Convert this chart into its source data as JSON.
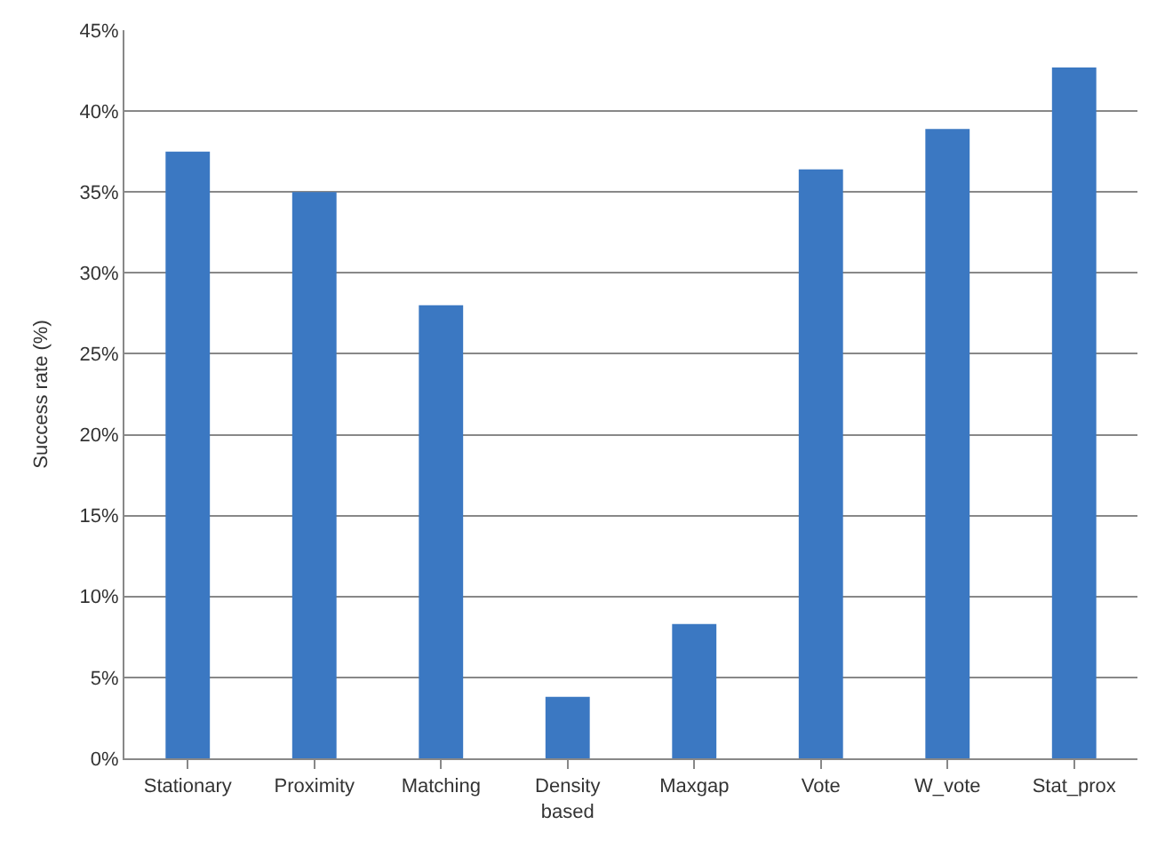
{
  "chart_data": {
    "type": "bar",
    "ylabel": "Success rate (%)",
    "categories": [
      "Stationary",
      "Proximity",
      "Matching",
      "Density\nbased",
      "Maxgap",
      "Vote",
      "W_vote",
      "Stat_prox"
    ],
    "values": [
      37.5,
      35,
      28,
      3.8,
      8.3,
      36.4,
      38.9,
      42.7
    ],
    "color": "#3b78c2",
    "ylim": [
      0,
      45
    ],
    "yticks": [
      {
        "value": 0,
        "label": "0%"
      },
      {
        "value": 5,
        "label": "5%"
      },
      {
        "value": 10,
        "label": "10%"
      },
      {
        "value": 15,
        "label": "15%"
      },
      {
        "value": 20,
        "label": "20%"
      },
      {
        "value": 25,
        "label": "25%"
      },
      {
        "value": 30,
        "label": "30%"
      },
      {
        "value": 35,
        "label": "35%"
      },
      {
        "value": 40,
        "label": "40%"
      },
      {
        "value": 45,
        "label": "45%"
      }
    ],
    "grid": "y"
  }
}
